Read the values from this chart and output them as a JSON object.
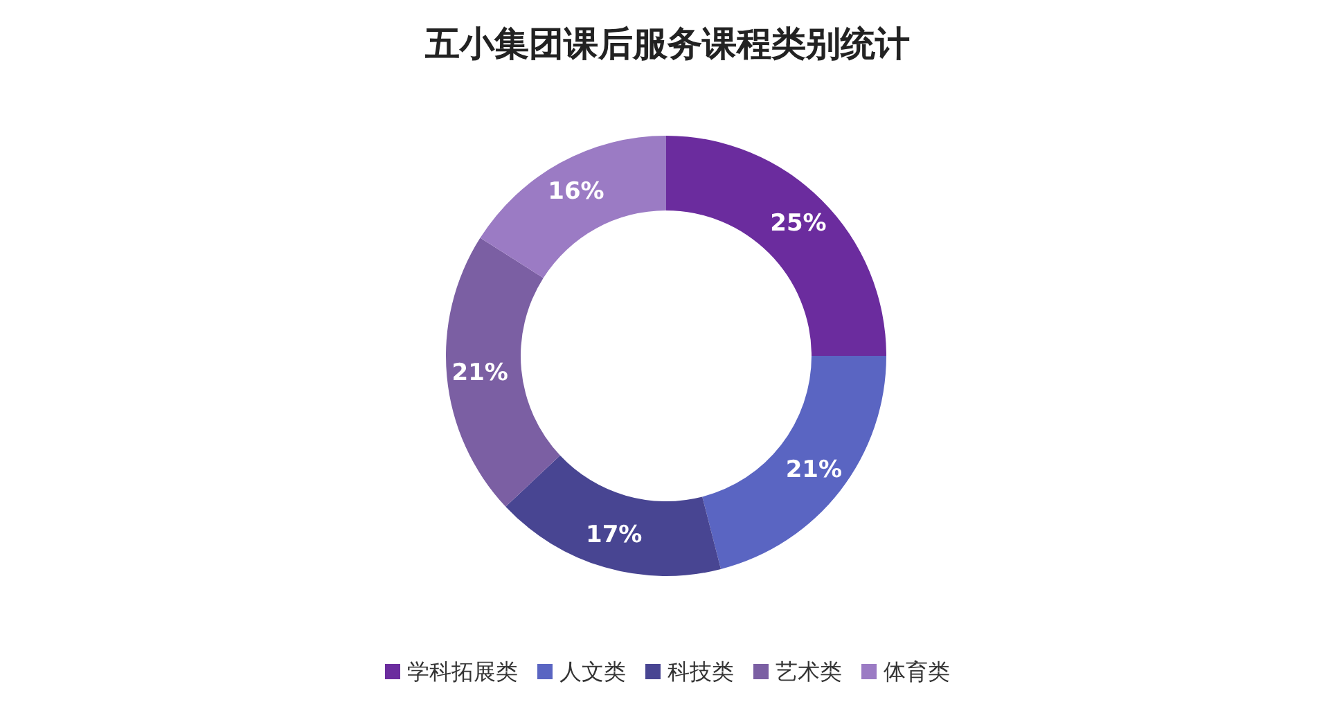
{
  "chart_data": {
    "type": "donut",
    "title": "五小集团课后服务课程类别统计",
    "categories": [
      "学科拓展类",
      "人文类",
      "科技类",
      "艺术类",
      "体育类"
    ],
    "values": [
      25,
      21,
      17,
      21,
      16
    ],
    "value_labels": [
      "25%",
      "21%",
      "17%",
      "21%",
      "16%"
    ],
    "colors": [
      "#6b2c9e",
      "#5a65c2",
      "#484592",
      "#7b5fa3",
      "#9b7bc4"
    ],
    "legend": "bottom"
  }
}
